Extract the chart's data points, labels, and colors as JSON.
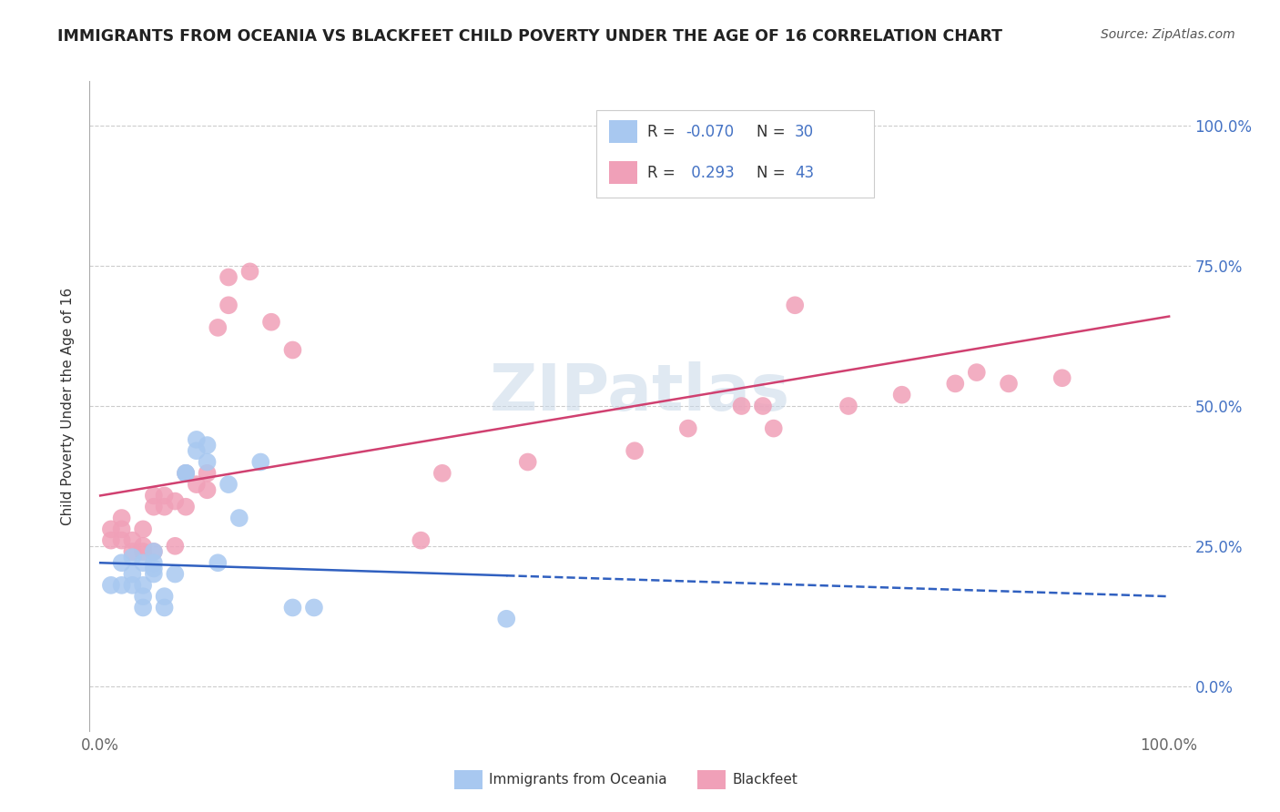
{
  "title": "IMMIGRANTS FROM OCEANIA VS BLACKFEET CHILD POVERTY UNDER THE AGE OF 16 CORRELATION CHART",
  "source": "Source: ZipAtlas.com",
  "ylabel": "Child Poverty Under the Age of 16",
  "xlim": [
    -0.01,
    1.02
  ],
  "ylim": [
    -0.08,
    1.08
  ],
  "ytick_positions": [
    0.0,
    0.25,
    0.5,
    0.75,
    1.0
  ],
  "ytick_labels": [
    "0.0%",
    "25.0%",
    "50.0%",
    "75.0%",
    "100.0%"
  ],
  "xtick_positions": [
    0.0,
    1.0
  ],
  "xtick_labels": [
    "0.0%",
    "100.0%"
  ],
  "background_color": "#ffffff",
  "blue_color": "#A8C8F0",
  "pink_color": "#F0A0B8",
  "blue_line_color": "#3060C0",
  "pink_line_color": "#D04070",
  "blue_scatter_x": [
    0.01,
    0.02,
    0.02,
    0.03,
    0.03,
    0.03,
    0.04,
    0.04,
    0.04,
    0.04,
    0.05,
    0.05,
    0.05,
    0.05,
    0.06,
    0.06,
    0.07,
    0.08,
    0.08,
    0.09,
    0.09,
    0.1,
    0.1,
    0.11,
    0.12,
    0.13,
    0.15,
    0.18,
    0.2,
    0.38
  ],
  "blue_scatter_y": [
    0.18,
    0.18,
    0.22,
    0.18,
    0.2,
    0.23,
    0.14,
    0.16,
    0.18,
    0.22,
    0.2,
    0.21,
    0.24,
    0.22,
    0.14,
    0.16,
    0.2,
    0.38,
    0.38,
    0.42,
    0.44,
    0.4,
    0.43,
    0.22,
    0.36,
    0.3,
    0.4,
    0.14,
    0.14,
    0.12
  ],
  "pink_scatter_x": [
    0.01,
    0.01,
    0.02,
    0.02,
    0.02,
    0.03,
    0.03,
    0.04,
    0.04,
    0.04,
    0.05,
    0.05,
    0.05,
    0.06,
    0.06,
    0.07,
    0.07,
    0.08,
    0.08,
    0.09,
    0.1,
    0.1,
    0.11,
    0.12,
    0.12,
    0.14,
    0.16,
    0.18,
    0.3,
    0.32,
    0.4,
    0.5,
    0.55,
    0.6,
    0.62,
    0.63,
    0.65,
    0.7,
    0.75,
    0.8,
    0.82,
    0.85,
    0.9
  ],
  "pink_scatter_y": [
    0.26,
    0.28,
    0.28,
    0.3,
    0.26,
    0.24,
    0.26,
    0.25,
    0.24,
    0.28,
    0.32,
    0.34,
    0.24,
    0.32,
    0.34,
    0.33,
    0.25,
    0.32,
    0.38,
    0.36,
    0.35,
    0.38,
    0.64,
    0.68,
    0.73,
    0.74,
    0.65,
    0.6,
    0.26,
    0.38,
    0.4,
    0.42,
    0.46,
    0.5,
    0.5,
    0.46,
    0.68,
    0.5,
    0.52,
    0.54,
    0.56,
    0.54,
    0.55
  ],
  "blue_line_x0": 0.0,
  "blue_line_y0": 0.22,
  "blue_line_x1": 1.0,
  "blue_line_y1": 0.16,
  "blue_line_solid_end": 0.38,
  "pink_line_x0": 0.0,
  "pink_line_y0": 0.34,
  "pink_line_x1": 1.0,
  "pink_line_y1": 0.66,
  "legend_blue_r": "-0.070",
  "legend_blue_n": "30",
  "legend_pink_r": "0.293",
  "legend_pink_n": "43",
  "watermark_text": "ZIPatlas",
  "bottom_label_blue": "Immigrants from Oceania",
  "bottom_label_pink": "Blackfeet"
}
